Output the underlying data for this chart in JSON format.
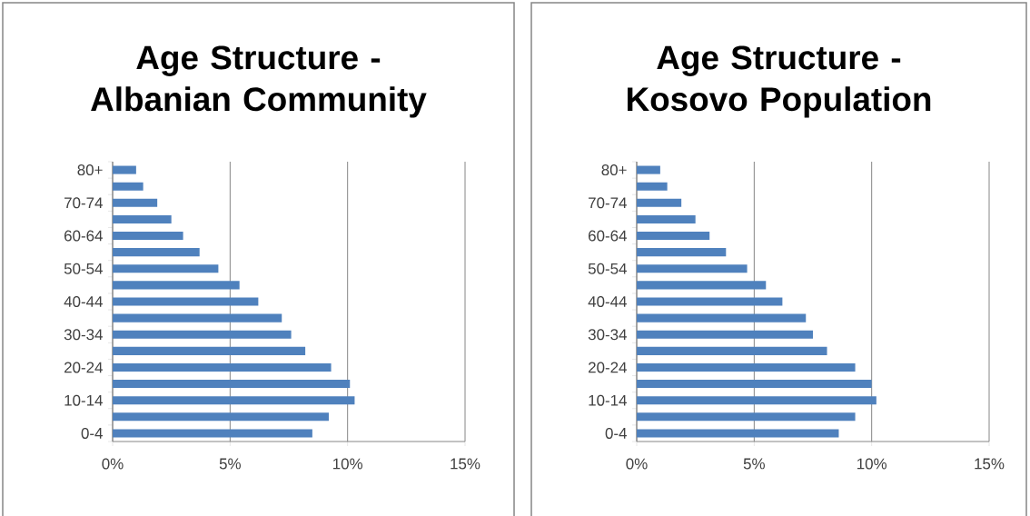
{
  "chart_data": [
    {
      "type": "bar",
      "orientation": "horizontal",
      "title": "Age Structure - Albanian Community",
      "categories": [
        "80+",
        null,
        "70-74",
        null,
        "60-64",
        null,
        "50-54",
        null,
        "40-44",
        null,
        "30-34",
        null,
        "20-24",
        null,
        "10-14",
        null,
        "0-4"
      ],
      "values": [
        1.0,
        1.3,
        1.9,
        2.5,
        3.0,
        3.7,
        4.5,
        5.4,
        6.2,
        7.2,
        7.6,
        8.2,
        9.3,
        10.1,
        10.3,
        9.2,
        8.5
      ],
      "color": "#4f81bd",
      "xlim": [
        0,
        15
      ],
      "xticks": [
        {
          "value": 0,
          "label": "0%"
        },
        {
          "value": 5,
          "label": "5%"
        },
        {
          "value": 10,
          "label": "10%"
        },
        {
          "value": 15,
          "label": "15%"
        }
      ],
      "grid": "x"
    },
    {
      "type": "bar",
      "orientation": "horizontal",
      "title": "Age Structure - Kosovo Population",
      "categories": [
        "80+",
        null,
        "70-74",
        null,
        "60-64",
        null,
        "50-54",
        null,
        "40-44",
        null,
        "30-34",
        null,
        "20-24",
        null,
        "10-14",
        null,
        "0-4"
      ],
      "values": [
        1.0,
        1.3,
        1.9,
        2.5,
        3.1,
        3.8,
        4.7,
        5.5,
        6.2,
        7.2,
        7.5,
        8.1,
        9.3,
        10.0,
        10.2,
        9.3,
        8.6
      ],
      "color": "#4f81bd",
      "xlim": [
        0,
        15
      ],
      "xticks": [
        {
          "value": 0,
          "label": "0%"
        },
        {
          "value": 5,
          "label": "5%"
        },
        {
          "value": 10,
          "label": "10%"
        },
        {
          "value": 15,
          "label": "15%"
        }
      ],
      "grid": "x"
    }
  ]
}
